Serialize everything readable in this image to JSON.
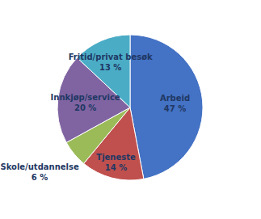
{
  "chart_data": {
    "type": "pie",
    "categories": [
      "Arbeid",
      "Tjeneste",
      "Skole/utdannelse",
      "Innkjøp/service",
      "Fritid/privat besøk"
    ],
    "values": [
      47,
      14,
      6,
      20,
      13
    ],
    "value_labels": [
      "47 %",
      "14 %",
      "6 %",
      "20 %",
      "13 %"
    ],
    "colors": [
      "#4472C4",
      "#C0504D",
      "#9BBB59",
      "#8064A2",
      "#4BACC6"
    ],
    "data_labels": true
  }
}
